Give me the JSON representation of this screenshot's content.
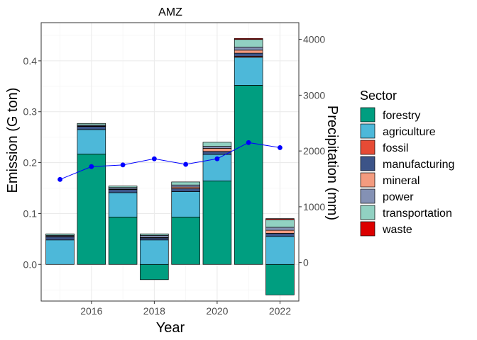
{
  "chart_data": {
    "type": "bar",
    "title": "AMZ",
    "xlabel": "Year",
    "ylabel": "Emission (G ton)",
    "y2label": "Precipitation (mm)",
    "years": [
      2015,
      2016,
      2017,
      2018,
      2019,
      2020,
      2021,
      2022
    ],
    "x_ticks": [
      "2016",
      "2018",
      "2020",
      "2022"
    ],
    "y_ticks": [
      "0.0",
      "0.1",
      "0.2",
      "0.3",
      "0.4"
    ],
    "y2_ticks": [
      "0",
      "1000",
      "2000",
      "3000",
      "4000"
    ],
    "ylim": [
      -0.072,
      0.475
    ],
    "y2lim": [
      -690,
      4300
    ],
    "grid": true,
    "legend": {
      "title": "Sector",
      "position": "right"
    },
    "series": [
      {
        "name": "forestry",
        "color": "#009E80",
        "values": [
          0.0,
          0.217,
          0.093,
          -0.03,
          0.093,
          0.164,
          0.352,
          -0.06
        ]
      },
      {
        "name": "agriculture",
        "color": "#4DB8D9",
        "values": [
          0.048,
          0.048,
          0.048,
          0.048,
          0.05,
          0.052,
          0.055,
          0.055
        ]
      },
      {
        "name": "fossil",
        "color": "#E64B35",
        "values": [
          0.0,
          0.0,
          0.0,
          0.0,
          0.0,
          0.0,
          0.002,
          0.0
        ]
      },
      {
        "name": "manufacturing",
        "color": "#3C5488",
        "values": [
          0.006,
          0.006,
          0.006,
          0.004,
          0.006,
          0.006,
          0.006,
          0.006
        ]
      },
      {
        "name": "mineral",
        "color": "#F39B7F",
        "values": [
          0.001,
          0.001,
          0.001,
          0.001,
          0.003,
          0.006,
          0.006,
          0.006
        ]
      },
      {
        "name": "power",
        "color": "#8491B4",
        "values": [
          0.002,
          0.002,
          0.003,
          0.004,
          0.004,
          0.004,
          0.006,
          0.006
        ]
      },
      {
        "name": "transportation",
        "color": "#91D1C2",
        "values": [
          0.003,
          0.003,
          0.003,
          0.003,
          0.006,
          0.008,
          0.015,
          0.015
        ]
      },
      {
        "name": "waste",
        "color": "#DC0000",
        "values": [
          0.0,
          0.0,
          0.0,
          0.0,
          0.0,
          0.0,
          0.002,
          0.002
        ]
      }
    ],
    "precipitation": {
      "color": "#0000FF",
      "values": [
        1490,
        1720,
        1750,
        1860,
        1760,
        1860,
        2150,
        2060
      ]
    }
  }
}
